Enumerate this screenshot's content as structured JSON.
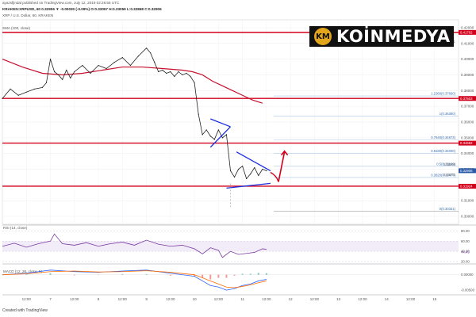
{
  "header": {
    "author": "ayazsfjindal published on TradingView.com, July 12, 2019 02:26:56 UTC",
    "symbol_line": "KRAKEN:XRPUSD, 60  0.32906 ▼ -0.00030 (-0.09%)  O:0.33057  H:0.33059  L:0.32868  C:0.32906",
    "pair_name": "XRP / U.S. Dollar, 60, KRAKEN",
    "sma_label": "SMA (100, close)"
  },
  "logo": {
    "badge": "KM",
    "text": "KOİNMEDYA"
  },
  "chart_data": {
    "type": "line",
    "title": "XRP / U.S. Dollar, 60, KRAKEN",
    "price_axis": {
      "ylim": [
        0.295,
        0.425
      ],
      "ticks": [
        "0.42000",
        "0.41000",
        "0.40000",
        "0.39000",
        "0.38000",
        "0.37000",
        "0.36000",
        "0.35000",
        "0.34000",
        "0.33000",
        "0.32000",
        "0.31000",
        "0.30000"
      ],
      "tick_values": [
        0.42,
        0.41,
        0.4,
        0.39,
        0.38,
        0.37,
        0.36,
        0.35,
        0.34,
        0.33,
        0.32,
        0.31,
        0.3
      ]
    },
    "x_ticks": [
      "12:00",
      "7",
      "12:00",
      "8",
      "12:00",
      "9",
      "12:00",
      "10",
      "12:00",
      "11",
      "12:00",
      "12",
      "12:00",
      "13",
      "12:00",
      "14",
      "12:00",
      "15"
    ],
    "x_tick_hours": [
      12,
      24,
      36,
      48,
      60,
      72,
      84,
      96,
      108,
      120,
      132,
      144,
      156,
      168,
      180,
      192,
      204,
      216
    ],
    "x_range_hours": [
      0,
      228
    ],
    "price_series": {
      "name": "XRP / U.S. Dollar",
      "hours": [
        0,
        4,
        8,
        12,
        16,
        20,
        22,
        24,
        26,
        28,
        30,
        32,
        34,
        36,
        40,
        44,
        48,
        52,
        56,
        60,
        64,
        68,
        72,
        74,
        76,
        78,
        80,
        82,
        84,
        86,
        88,
        90,
        92,
        94,
        96,
        98,
        100,
        102,
        104,
        106,
        108,
        110,
        112,
        114,
        116,
        118,
        120,
        122,
        124,
        126,
        128,
        130,
        132
      ],
      "values": [
        0.375,
        0.381,
        0.377,
        0.379,
        0.381,
        0.382,
        0.385,
        0.4,
        0.392,
        0.39,
        0.387,
        0.393,
        0.388,
        0.392,
        0.396,
        0.391,
        0.396,
        0.394,
        0.398,
        0.401,
        0.396,
        0.402,
        0.407,
        0.404,
        0.398,
        0.392,
        0.393,
        0.391,
        0.392,
        0.389,
        0.392,
        0.39,
        0.391,
        0.389,
        0.385,
        0.365,
        0.352,
        0.355,
        0.351,
        0.349,
        0.355,
        0.35,
        0.352,
        0.329,
        0.325,
        0.33,
        0.332,
        0.324,
        0.327,
        0.331,
        0.326,
        0.33,
        0.329
      ]
    },
    "sma_series": {
      "name": "SMA (100, close)",
      "hours": [
        0,
        10,
        20,
        30,
        40,
        50,
        60,
        70,
        80,
        90,
        95,
        100,
        105,
        110,
        115,
        120,
        125,
        130
      ],
      "values": [
        0.4,
        0.395,
        0.391,
        0.39,
        0.391,
        0.393,
        0.395,
        0.395,
        0.394,
        0.393,
        0.392,
        0.39,
        0.386,
        0.383,
        0.38,
        0.377,
        0.374,
        0.372
      ]
    },
    "horizontal_levels": [
      {
        "value": 0.417,
        "label": "0.41702"
      },
      {
        "value": 0.375,
        "label": "0.37503"
      },
      {
        "value": 0.3466,
        "label": "0.34662"
      },
      {
        "value": 0.3192,
        "label": "0.31924"
      }
    ],
    "fib_levels": [
      {
        "ratio": "1.2360",
        "value": 0.3766,
        "label": "1.2360(0.37660)"
      },
      {
        "ratio": "1",
        "value": 0.3638,
        "label": "1(0.36380)"
      },
      {
        "ratio": "0.7640",
        "value": 0.34873,
        "label": "0.7640(0.34873)"
      },
      {
        "ratio": "0.6180",
        "value": 0.34,
        "label": "0.6180(0.34000)"
      },
      {
        "ratio": "0.5",
        "value": 0.3319,
        "label": "0.5(0.33190)"
      },
      {
        "ratio": "0.3820",
        "value": 0.32477,
        "label": "0.3820(0.32477)"
      },
      {
        "ratio": "0",
        "value": 0.30331,
        "label": "0(0.30331)"
      }
    ],
    "current_price": {
      "value": 0.32906,
      "label": "0.32906"
    },
    "price_labels_right": [
      "0.40291",
      "0.32906",
      "0.33271"
    ],
    "rsi": {
      "label": "RSI (14, close)",
      "ylim": [
        20,
        90
      ],
      "ticks": [
        "80.00",
        "60.00",
        "40.00",
        "20.00"
      ],
      "tick_values": [
        80,
        60,
        40,
        20
      ],
      "value_label": "44.45",
      "hours": [
        0,
        6,
        12,
        18,
        24,
        26,
        30,
        36,
        42,
        48,
        54,
        60,
        66,
        72,
        78,
        84,
        90,
        96,
        100,
        104,
        108,
        110,
        114,
        118,
        122,
        126,
        130,
        132
      ],
      "values": [
        50,
        56,
        48,
        55,
        60,
        74,
        55,
        52,
        57,
        50,
        55,
        58,
        52,
        62,
        54,
        50,
        52,
        45,
        35,
        47,
        42,
        28,
        40,
        34,
        36,
        38,
        45,
        44
      ]
    },
    "macd": {
      "label": "MACD (12, 26, close, 9)",
      "ylim": [
        -0.006,
        0.003
      ],
      "ticks": [
        "0.00000",
        "-0.00500"
      ],
      "tick_values": [
        0.0,
        -0.005
      ],
      "macd_hours": [
        0,
        12,
        24,
        36,
        48,
        60,
        72,
        84,
        96,
        100,
        104,
        108,
        112,
        116,
        120,
        124,
        128,
        132
      ],
      "macd_values": [
        0.0,
        0.0005,
        0.0015,
        0.001,
        0.0008,
        0.0012,
        0.0015,
        0.0005,
        -0.0005,
        -0.002,
        -0.0035,
        -0.004,
        -0.005,
        -0.0045,
        -0.0035,
        -0.003,
        -0.002,
        -0.0015
      ],
      "signal_values": [
        0.0,
        0.0003,
        0.001,
        0.0012,
        0.0009,
        0.001,
        0.0013,
        0.0008,
        0.0,
        -0.001,
        -0.002,
        -0.003,
        -0.004,
        -0.0042,
        -0.0038,
        -0.0033,
        -0.0026,
        -0.002
      ]
    }
  },
  "footer": {
    "text": "Created with TradingView"
  }
}
